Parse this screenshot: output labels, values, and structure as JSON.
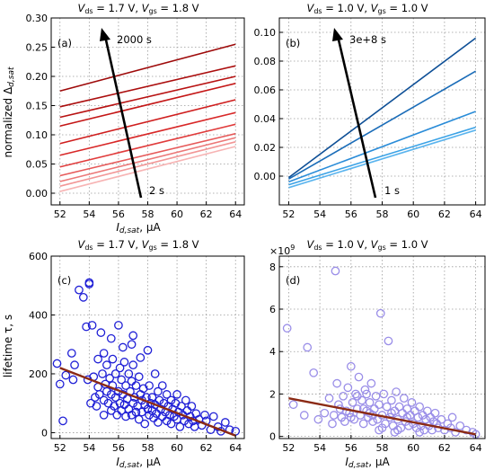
{
  "figure": {
    "xlabel_main": "I",
    "xlabel_sub": "d,sat",
    "xlabel_unit": ", μA",
    "x_ticks": [
      "52",
      "54",
      "56",
      "58",
      "60",
      "62",
      "64"
    ]
  },
  "chart_data": [
    {
      "panel": "(a)",
      "type": "line",
      "title_parts": [
        "V",
        "ds",
        " = 1.7 V, ",
        "V",
        "gs",
        " = 1.8 V"
      ],
      "ylabel_main": "normalized Δ",
      "ylabel_sub": "d,sat",
      "xlim": [
        51.4,
        64.6
      ],
      "ylim": [
        -0.02,
        0.3
      ],
      "x_ticks": [
        52,
        54,
        56,
        58,
        60,
        62,
        64
      ],
      "y_ticks": [
        "0.00",
        "0.05",
        "0.10",
        "0.15",
        "0.20",
        "0.25",
        "0.30"
      ],
      "grid": true,
      "annotation_start": "2 s",
      "annotation_end": "2000 s",
      "series": [
        {
          "color": "#f7b4b4",
          "x": [
            52,
            64
          ],
          "y": [
            0.003,
            0.08
          ]
        },
        {
          "color": "#f29696",
          "x": [
            52,
            64
          ],
          "y": [
            0.012,
            0.088
          ]
        },
        {
          "color": "#ec7878",
          "x": [
            52,
            64
          ],
          "y": [
            0.02,
            0.095
          ]
        },
        {
          "color": "#e65a5a",
          "x": [
            52,
            64
          ],
          "y": [
            0.03,
            0.102
          ]
        },
        {
          "color": "#e03c3c",
          "x": [
            52,
            64
          ],
          "y": [
            0.045,
            0.118
          ]
        },
        {
          "color": "#d82828",
          "x": [
            52,
            64
          ],
          "y": [
            0.065,
            0.138
          ]
        },
        {
          "color": "#cf1e1e",
          "x": [
            52,
            64
          ],
          "y": [
            0.085,
            0.16
          ]
        },
        {
          "color": "#c41616",
          "x": [
            52,
            64
          ],
          "y": [
            0.115,
            0.188
          ]
        },
        {
          "color": "#b81212",
          "x": [
            52,
            64
          ],
          "y": [
            0.13,
            0.2
          ]
        },
        {
          "color": "#ab0e0e",
          "x": [
            52,
            64
          ],
          "y": [
            0.148,
            0.218
          ]
        },
        {
          "color": "#9e0a0a",
          "x": [
            52,
            64
          ],
          "y": [
            0.175,
            0.255
          ]
        }
      ]
    },
    {
      "panel": "(b)",
      "type": "line",
      "title_parts": [
        "V",
        "ds",
        " = 1.0 V, ",
        "V",
        "gs",
        " = 1.0 V"
      ],
      "xlim": [
        51.4,
        64.6
      ],
      "ylim": [
        -0.02,
        0.11
      ],
      "x_ticks": [
        52,
        54,
        56,
        58,
        60,
        62,
        64
      ],
      "y_ticks": [
        "0.00",
        "0.02",
        "0.04",
        "0.06",
        "0.08",
        "0.10"
      ],
      "grid": true,
      "annotation_start": "1 s",
      "annotation_end": "3e+8 s",
      "series": [
        {
          "color": "#5ab4ee",
          "x": [
            52,
            64
          ],
          "y": [
            -0.008,
            0.032
          ]
        },
        {
          "color": "#3aa2e6",
          "x": [
            52,
            64
          ],
          "y": [
            -0.006,
            0.034
          ]
        },
        {
          "color": "#2a8cd8",
          "x": [
            52,
            64
          ],
          "y": [
            -0.004,
            0.045
          ]
        },
        {
          "color": "#1a6cb8",
          "x": [
            52,
            64
          ],
          "y": [
            -0.002,
            0.073
          ]
        },
        {
          "color": "#0e4f96",
          "x": [
            52,
            64
          ],
          "y": [
            -0.001,
            0.096
          ]
        }
      ]
    },
    {
      "panel": "(c)",
      "type": "scatter",
      "title_parts": [
        "V",
        "ds",
        " = 1.7 V, ",
        "V",
        "gs",
        " = 1.8 V"
      ],
      "ylabel": "lifetime τ, s",
      "xlim": [
        51.4,
        64.6
      ],
      "ylim": [
        -20,
        600
      ],
      "x_ticks": [
        52,
        54,
        56,
        58,
        60,
        62,
        64
      ],
      "y_ticks": [
        "0",
        "200",
        "400",
        "600"
      ],
      "grid": true,
      "marker_color": "#1f1fd6",
      "fit_line": {
        "color": "#8b2a14",
        "x": [
          52,
          64
        ],
        "y": [
          220,
          -10
        ]
      },
      "points": [
        [
          51.8,
          235
        ],
        [
          52.0,
          165
        ],
        [
          52.2,
          40
        ],
        [
          52.4,
          195
        ],
        [
          52.8,
          270
        ],
        [
          52.9,
          180
        ],
        [
          53.0,
          230
        ],
        [
          53.3,
          485
        ],
        [
          53.6,
          460
        ],
        [
          53.9,
          180
        ],
        [
          54.0,
          505
        ],
        [
          54.0,
          510
        ],
        [
          54.1,
          100
        ],
        [
          54.2,
          365
        ],
        [
          54.3,
          190
        ],
        [
          54.4,
          120
        ],
        [
          54.5,
          90
        ],
        [
          54.6,
          155
        ],
        [
          54.7,
          130
        ],
        [
          54.8,
          340
        ],
        [
          54.9,
          200
        ],
        [
          55.0,
          110
        ],
        [
          55.0,
          60
        ],
        [
          55.1,
          165
        ],
        [
          55.2,
          230
        ],
        [
          55.2,
          140
        ],
        [
          55.3,
          100
        ],
        [
          55.4,
          185
        ],
        [
          55.5,
          75
        ],
        [
          55.5,
          130
        ],
        [
          55.6,
          250
        ],
        [
          55.6,
          160
        ],
        [
          55.7,
          90
        ],
        [
          55.8,
          200
        ],
        [
          55.8,
          120
        ],
        [
          55.9,
          60
        ],
        [
          56.0,
          365
        ],
        [
          56.0,
          140
        ],
        [
          56.1,
          220
        ],
        [
          56.1,
          100
        ],
        [
          56.2,
          180
        ],
        [
          56.2,
          75
        ],
        [
          56.3,
          130
        ],
        [
          56.4,
          240
        ],
        [
          56.4,
          95
        ],
        [
          56.5,
          160
        ],
        [
          56.5,
          55
        ],
        [
          56.6,
          115
        ],
        [
          56.7,
          200
        ],
        [
          56.7,
          80
        ],
        [
          56.8,
          140
        ],
        [
          56.9,
          60
        ],
        [
          56.9,
          175
        ],
        [
          57.0,
          100
        ],
        [
          57.0,
          230
        ],
        [
          57.1,
          120
        ],
        [
          57.2,
          70
        ],
        [
          57.2,
          160
        ],
        [
          57.3,
          90
        ],
        [
          57.4,
          190
        ],
        [
          57.4,
          45
        ],
        [
          57.5,
          130
        ],
        [
          57.6,
          110
        ],
        [
          57.6,
          70
        ],
        [
          57.7,
          150
        ],
        [
          57.8,
          95
        ],
        [
          57.8,
          30
        ],
        [
          57.9,
          120
        ],
        [
          58.0,
          280
        ],
        [
          58.0,
          80
        ],
        [
          58.1,
          60
        ],
        [
          58.1,
          160
        ],
        [
          58.2,
          100
        ],
        [
          58.3,
          75
        ],
        [
          58.3,
          120
        ],
        [
          58.4,
          50
        ],
        [
          58.5,
          200
        ],
        [
          58.5,
          95
        ],
        [
          58.6,
          65
        ],
        [
          58.7,
          140
        ],
        [
          58.7,
          35
        ],
        [
          58.8,
          110
        ],
        [
          58.9,
          80
        ],
        [
          59.0,
          160
        ],
        [
          59.0,
          55
        ],
        [
          59.1,
          100
        ],
        [
          59.2,
          70
        ],
        [
          59.3,
          40
        ],
        [
          59.3,
          130
        ],
        [
          59.4,
          90
        ],
        [
          59.5,
          60
        ],
        [
          59.6,
          110
        ],
        [
          59.6,
          30
        ],
        [
          59.7,
          80
        ],
        [
          59.8,
          55
        ],
        [
          59.9,
          100
        ],
        [
          60.0,
          45
        ],
        [
          60.0,
          130
        ],
        [
          60.1,
          70
        ],
        [
          60.2,
          20
        ],
        [
          60.3,
          90
        ],
        [
          60.4,
          60
        ],
        [
          60.5,
          40
        ],
        [
          60.6,
          110
        ],
        [
          60.7,
          75
        ],
        [
          60.8,
          30
        ],
        [
          60.9,
          55
        ],
        [
          61.0,
          90
        ],
        [
          61.1,
          40
        ],
        [
          61.2,
          20
        ],
        [
          61.3,
          65
        ],
        [
          61.5,
          45
        ],
        [
          61.7,
          25
        ],
        [
          61.9,
          60
        ],
        [
          62.0,
          40
        ],
        [
          62.3,
          10
        ],
        [
          62.5,
          55
        ],
        [
          62.8,
          20
        ],
        [
          63.0,
          5
        ],
        [
          63.3,
          35
        ],
        [
          63.6,
          10
        ],
        [
          64.0,
          5
        ],
        [
          57.0,
          330
        ],
        [
          55.5,
          320
        ],
        [
          57.5,
          255
        ],
        [
          54.6,
          250
        ],
        [
          56.9,
          300
        ],
        [
          53.8,
          360
        ],
        [
          56.3,
          290
        ],
        [
          55.0,
          270
        ]
      ]
    },
    {
      "panel": "(d)",
      "type": "scatter",
      "title_parts": [
        "V",
        "ds",
        " = 1.0 V, ",
        "V",
        "gs",
        " = 1.0 V"
      ],
      "offset_text": "×10",
      "offset_exp": "9",
      "xlim": [
        51.4,
        64.6
      ],
      "ylim": [
        -0.1,
        8.5
      ],
      "x_ticks": [
        52,
        54,
        56,
        58,
        60,
        62,
        64
      ],
      "y_ticks": [
        "0",
        "2",
        "4",
        "6",
        "8"
      ],
      "grid": true,
      "marker_color": "#9a8ee8",
      "fit_line": {
        "color": "#8b2a14",
        "x": [
          52,
          64
        ],
        "y": [
          1.8,
          0.1
        ]
      },
      "points": [
        [
          51.9,
          5.1
        ],
        [
          52.3,
          1.5
        ],
        [
          53.2,
          4.2
        ],
        [
          53.6,
          3.0
        ],
        [
          53.9,
          0.8
        ],
        [
          54.3,
          1.1
        ],
        [
          54.6,
          1.8
        ],
        [
          54.9,
          1.0
        ],
        [
          55.0,
          7.8
        ],
        [
          55.1,
          2.5
        ],
        [
          55.3,
          1.3
        ],
        [
          55.5,
          1.9
        ],
        [
          55.6,
          0.7
        ],
        [
          55.8,
          2.3
        ],
        [
          55.9,
          1.1
        ],
        [
          56.0,
          3.3
        ],
        [
          56.1,
          1.6
        ],
        [
          56.2,
          0.8
        ],
        [
          56.3,
          2.0
        ],
        [
          56.4,
          1.3
        ],
        [
          56.5,
          2.8
        ],
        [
          56.6,
          1.0
        ],
        [
          56.7,
          1.7
        ],
        [
          56.8,
          0.6
        ],
        [
          56.9,
          2.2
        ],
        [
          57.0,
          1.2
        ],
        [
          57.1,
          0.9
        ],
        [
          57.2,
          1.6
        ],
        [
          57.3,
          2.5
        ],
        [
          57.4,
          0.7
        ],
        [
          57.5,
          1.3
        ],
        [
          57.6,
          1.9
        ],
        [
          57.7,
          0.8
        ],
        [
          57.8,
          1.5
        ],
        [
          57.9,
          5.8
        ],
        [
          58.0,
          1.0
        ],
        [
          58.1,
          2.0
        ],
        [
          58.2,
          0.6
        ],
        [
          58.3,
          1.4
        ],
        [
          58.4,
          4.5
        ],
        [
          58.5,
          0.9
        ],
        [
          58.6,
          1.7
        ],
        [
          58.7,
          0.5
        ],
        [
          58.8,
          1.2
        ],
        [
          58.9,
          2.1
        ],
        [
          59.0,
          0.8
        ],
        [
          59.1,
          1.4
        ],
        [
          59.2,
          0.4
        ],
        [
          59.3,
          1.1
        ],
        [
          59.4,
          1.8
        ],
        [
          59.5,
          0.7
        ],
        [
          59.6,
          1.3
        ],
        [
          59.7,
          0.5
        ],
        [
          59.8,
          1.0
        ],
        [
          59.9,
          1.6
        ],
        [
          60.0,
          0.6
        ],
        [
          60.1,
          1.2
        ],
        [
          60.2,
          0.4
        ],
        [
          60.3,
          0.9
        ],
        [
          60.4,
          1.4
        ],
        [
          60.5,
          0.5
        ],
        [
          60.6,
          1.0
        ],
        [
          60.7,
          0.3
        ],
        [
          60.8,
          0.8
        ],
        [
          60.9,
          1.2
        ],
        [
          61.0,
          0.5
        ],
        [
          61.1,
          0.9
        ],
        [
          61.2,
          0.3
        ],
        [
          61.3,
          0.7
        ],
        [
          61.4,
          1.1
        ],
        [
          61.6,
          0.4
        ],
        [
          61.8,
          0.8
        ],
        [
          62.0,
          0.3
        ],
        [
          62.2,
          0.6
        ],
        [
          62.5,
          0.9
        ],
        [
          62.7,
          0.2
        ],
        [
          63.0,
          0.5
        ],
        [
          63.4,
          0.3
        ],
        [
          63.8,
          0.2
        ],
        [
          64.0,
          0.1
        ],
        [
          55.2,
          1.5
        ],
        [
          56.0,
          0.9
        ],
        [
          56.8,
          1.3
        ],
        [
          57.4,
          1.0
        ],
        [
          58.0,
          0.4
        ],
        [
          58.6,
          1.1
        ],
        [
          59.0,
          0.3
        ],
        [
          59.6,
          0.9
        ],
        [
          60.4,
          0.2
        ],
        [
          55.7,
          1.2
        ],
        [
          56.4,
          1.9
        ],
        [
          57.0,
          2.0
        ],
        [
          57.8,
          0.3
        ],
        [
          58.8,
          0.2
        ],
        [
          54.8,
          0.6
        ],
        [
          55.4,
          0.9
        ],
        [
          61.5,
          0.6
        ],
        [
          62.4,
          0.4
        ],
        [
          53.0,
          1.0
        ],
        [
          57.2,
          1.1
        ]
      ]
    }
  ]
}
